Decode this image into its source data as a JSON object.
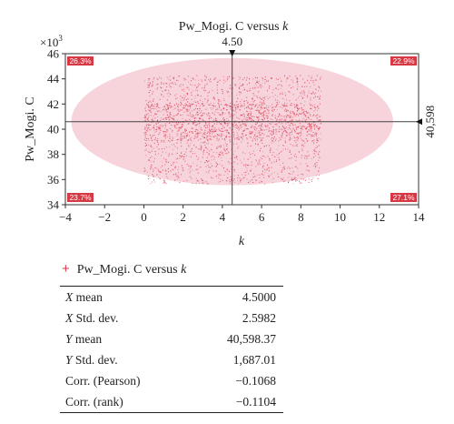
{
  "chart_data": {
    "type": "scatter",
    "title_prefix": "Pw_Mogi. C versus ",
    "title_var": "k",
    "xlabel": "k",
    "ylabel": "Pw_Mogi. C",
    "y_multiplier": "×10",
    "y_multiplier_exp": "3",
    "xlim": [
      -4,
      14
    ],
    "ylim": [
      34,
      46
    ],
    "x_ticks": [
      -4,
      -2,
      0,
      2,
      4,
      6,
      8,
      10,
      12,
      14
    ],
    "x_tick_labels": [
      "−4",
      "−2",
      "0",
      "2",
      "4",
      "6",
      "8",
      "10",
      "12",
      "14"
    ],
    "y_ticks": [
      34,
      36,
      38,
      40,
      42,
      44,
      46
    ],
    "y_tick_labels": [
      "34",
      "36",
      "38",
      "40",
      "42",
      "44",
      "46"
    ],
    "x_mean_line": 4.5,
    "x_mean_label": "4.50",
    "y_mean_line": 40.598,
    "y_mean_label": "40,598",
    "points_x_range": [
      0,
      9
    ],
    "points_y_range": [
      35.7,
      44.3
    ],
    "ellipse": {
      "cx": 4.5,
      "cy": 40.6,
      "rx": 8.2,
      "ry": 5.05
    },
    "quadrant_labels": {
      "top_left": "26.3%",
      "top_right": "22.9%",
      "bottom_left": "23.7%",
      "bottom_right": "27.1%"
    },
    "colors": {
      "points": "#d8364b",
      "ellipse_fill": "#f6ccd6",
      "quadrant_box": "#d63844",
      "mean_lines": "#444444"
    },
    "legend": {
      "marker": "+",
      "label_prefix": "Pw_Mogi. C versus ",
      "label_var": "k"
    },
    "stats": [
      {
        "var": "X",
        "label": " mean",
        "value": "4.5000"
      },
      {
        "var": "X",
        "label": " Std. dev.",
        "value": "2.5982"
      },
      {
        "var": "Y",
        "label": " mean",
        "value": "40,598.37"
      },
      {
        "var": "Y",
        "label": " Std. dev.",
        "value": "1,687.01"
      },
      {
        "var": "",
        "label": "Corr. (Pearson)",
        "value": "−0.1068"
      },
      {
        "var": "",
        "label": "Corr. (rank)",
        "value": "−0.1104"
      }
    ]
  }
}
